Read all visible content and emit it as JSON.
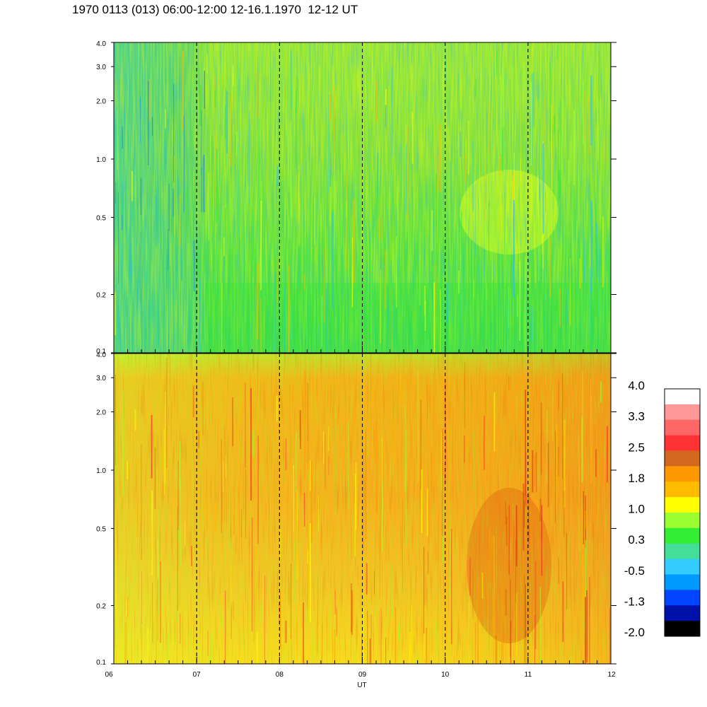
{
  "header": {
    "title": "1970 0113 (013) 06:00-12:00 12-16.1.1970  12-12 UT"
  },
  "chart_data": [
    {
      "type": "heatmap",
      "panel": "upper",
      "x_ticks": [
        "06",
        "07",
        "08",
        "09",
        "10",
        "11",
        "12"
      ],
      "x_range": [
        "06:00",
        "12:00"
      ],
      "y_ticks": [
        "0.1",
        "0.2",
        "0.5",
        "1.0",
        "2.0",
        "3.0",
        "4.0"
      ],
      "y_range": [
        0.1,
        4.0
      ],
      "y_scale": "log",
      "hour_markers": "dashed vertical lines at each hour",
      "dominant_levels": [
        "0.3",
        "1.0",
        "-0.5"
      ]
    },
    {
      "type": "heatmap",
      "panel": "lower",
      "x_ticks": [
        "06",
        "07",
        "08",
        "09",
        "10",
        "11",
        "12"
      ],
      "x_range": [
        "06:00",
        "12:00"
      ],
      "xlabel": "UT",
      "y_ticks": [
        "0.1",
        "0.2",
        "0.5",
        "1.0",
        "2.0",
        "3.0",
        "4.0"
      ],
      "y_range": [
        0.1,
        4.0
      ],
      "y_scale": "log",
      "hour_markers": "dashed vertical lines at each hour",
      "dominant_levels": [
        "1.8",
        "1.0",
        "2.5"
      ]
    }
  ],
  "colorbar": {
    "labels": [
      "4.0",
      "3.3",
      "2.5",
      "1.8",
      "1.0",
      "0.3",
      "-0.5",
      "-1.3",
      "-2.0"
    ],
    "colors": [
      "#ffffff",
      "#ff9999",
      "#ff6666",
      "#ff3333",
      "#d2691e",
      "#ff9900",
      "#ffbb00",
      "#ffff00",
      "#99ff33",
      "#33ee33",
      "#44dd99",
      "#33ccff",
      "#0099ff",
      "#0044ff",
      "#0011aa",
      "#000000"
    ]
  }
}
